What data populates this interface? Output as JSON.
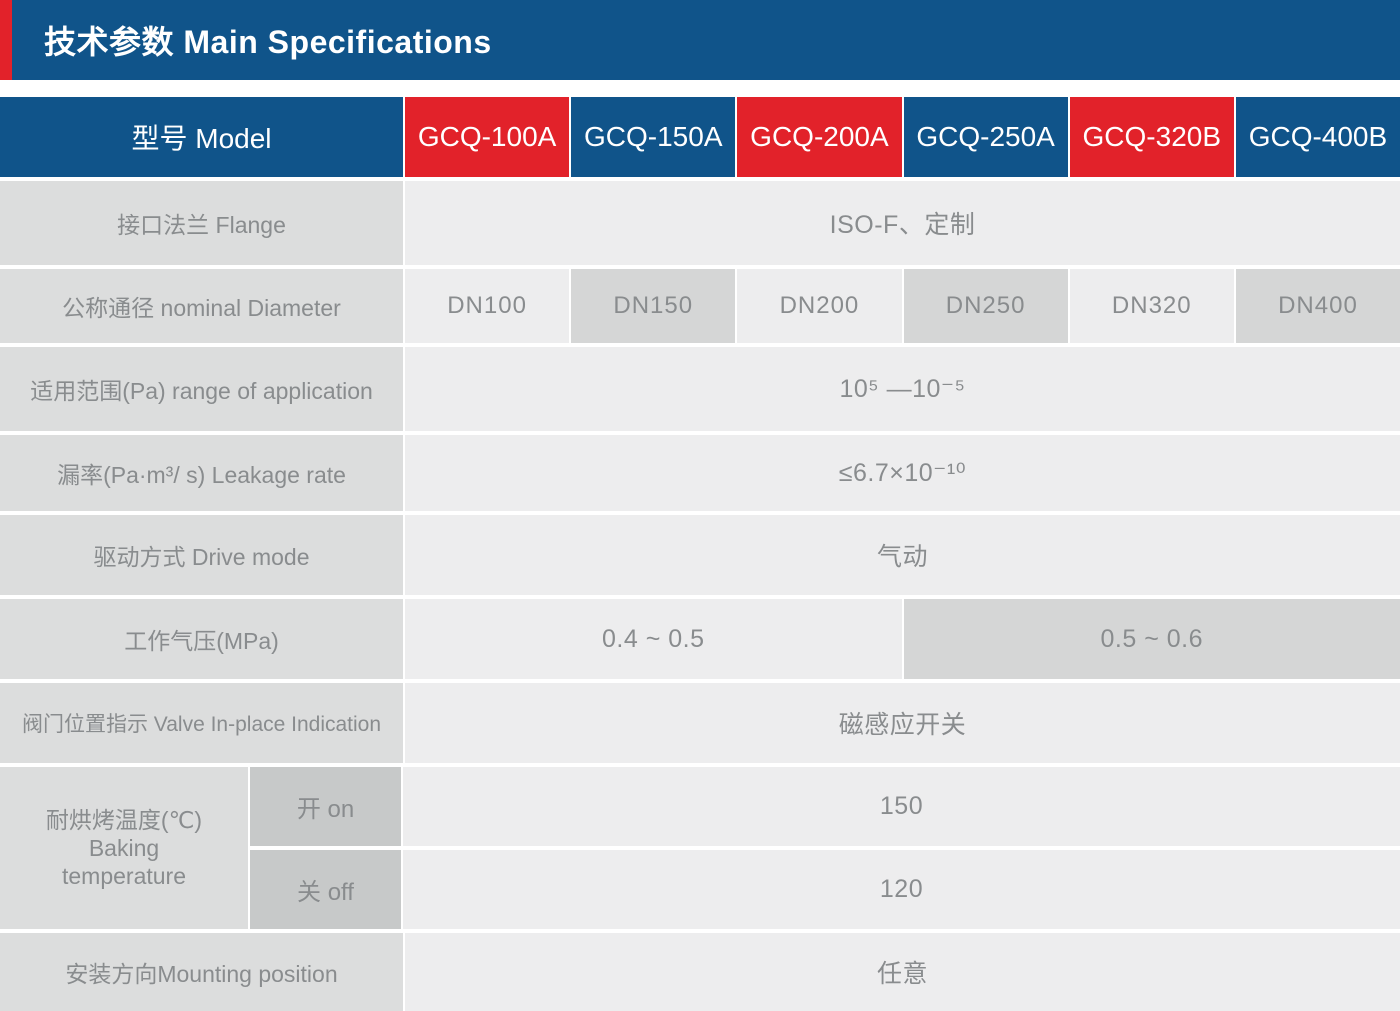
{
  "title": "技术参数 Main Specifications",
  "colors": {
    "header_blue": "#10548a",
    "accent_red": "#e2222a",
    "label_gray": "#dcdddd",
    "value_light_gray": "#ededee",
    "value_mid_gray": "#d5d6d6",
    "sub_label_gray": "#c7c9c9",
    "text_gray": "#898c8e"
  },
  "table": {
    "model_header": "型号 Model",
    "models": [
      {
        "label": "GCQ-100A",
        "accent": "red"
      },
      {
        "label": "GCQ-150A",
        "accent": "blue"
      },
      {
        "label": "GCQ-200A",
        "accent": "red"
      },
      {
        "label": "GCQ-250A",
        "accent": "blue"
      },
      {
        "label": "GCQ-320B",
        "accent": "red"
      },
      {
        "label": "GCQ-400B",
        "accent": "blue"
      }
    ],
    "rows": {
      "flange": {
        "label": "接口法兰 Flange",
        "value": "ISO-F、定制"
      },
      "diameter": {
        "label": "公称通径 nominal Diameter",
        "values": [
          "DN100",
          "DN150",
          "DN200",
          "DN250",
          "DN320",
          "DN400"
        ]
      },
      "range": {
        "label": "适用范围(Pa) range of application",
        "value": "10⁵ —10⁻⁵"
      },
      "leakage": {
        "label": "漏率(Pa·m³/ s) Leakage rate",
        "value": "≤6.7×10⁻¹⁰"
      },
      "drive": {
        "label": "驱动方式 Drive mode",
        "value": "气动"
      },
      "pressure": {
        "label": "工作气压(MPa)",
        "value_low": "0.4 ~ 0.5",
        "value_high": "0.5 ~ 0.6"
      },
      "valve": {
        "label": "阀门位置指示 Valve In-place Indication",
        "value": "磁感应开关"
      },
      "baking": {
        "label": "耐烘烤温度(℃)\nBaking\ntemperature",
        "sub_rows": [
          {
            "label": "开 on",
            "value": "150"
          },
          {
            "label": "关 off",
            "value": "120"
          }
        ]
      },
      "mounting": {
        "label": "安装方向Mounting position",
        "value": "任意"
      }
    }
  }
}
